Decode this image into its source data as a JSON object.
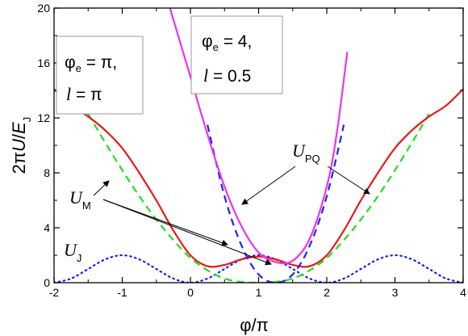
{
  "chart_data": {
    "type": "line",
    "xlabel_main": "φ/π",
    "ylabel_parts": {
      "prefix": "2π",
      "U": "U",
      "slash": "/",
      "E": "E",
      "sub": "J"
    },
    "xlim": [
      -2,
      4
    ],
    "ylim": [
      0,
      20
    ],
    "xticks": [
      -2,
      -1,
      0,
      1,
      2,
      3,
      4
    ],
    "yticks": [
      0,
      4,
      8,
      12,
      16,
      20
    ],
    "xtick_labels": [
      "-2",
      "-1",
      "0",
      "1",
      "2",
      "3",
      "4"
    ],
    "ytick_labels": [
      "0",
      "4",
      "8",
      "12",
      "16",
      "20"
    ],
    "series": [
      {
        "key": "uj",
        "color": "#1a1aff",
        "style": "dotted",
        "x": [
          -2,
          -1.75,
          -1.5,
          -1.25,
          -1,
          -0.75,
          -0.5,
          -0.25,
          0,
          0.25,
          0.5,
          0.75,
          1,
          1.25,
          1.5,
          1.75,
          2,
          2.25,
          2.5,
          2.75,
          3,
          3.25,
          3.5,
          3.75,
          4
        ],
        "y": [
          0,
          0.3,
          1.0,
          1.7,
          2.0,
          1.7,
          1.0,
          0.3,
          0,
          0.3,
          1.0,
          1.7,
          2.0,
          1.7,
          1.0,
          0.3,
          0,
          0.3,
          1.0,
          1.7,
          2.0,
          1.7,
          1.0,
          0.3,
          0
        ]
      },
      {
        "key": "green",
        "color": "#22dd22",
        "style": "dashed",
        "x": [
          -1.5,
          -1.25,
          -1,
          -0.75,
          -0.5,
          -0.25,
          0,
          0.25,
          0.5,
          0.75,
          1,
          1.25,
          1.5,
          1.75,
          2,
          2.25,
          2.5,
          2.75,
          3,
          3.25,
          3.5
        ],
        "y": [
          12.3,
          10.2,
          8.2,
          6.3,
          4.6,
          3.1,
          1.8,
          0.9,
          0.3,
          0.05,
          0,
          0.05,
          0.3,
          0.9,
          1.8,
          3.1,
          4.6,
          6.3,
          8.2,
          10.2,
          12.3
        ]
      },
      {
        "key": "um",
        "color": "#e8191a",
        "style": "solid",
        "x": [
          -2,
          -1.75,
          -1.5,
          -1.25,
          -1,
          -0.75,
          -0.5,
          -0.25,
          0,
          0.25,
          0.5,
          0.75,
          1,
          1.25,
          1.5,
          1.75,
          2,
          2.25,
          2.5,
          2.75,
          3,
          3.25,
          3.5,
          3.75,
          4
        ],
        "y": [
          14.1,
          12.9,
          12.1,
          11.1,
          9.8,
          8.0,
          6.0,
          3.8,
          2.0,
          1.2,
          1.3,
          1.7,
          1.9,
          1.7,
          1.3,
          1.2,
          2.0,
          3.8,
          6.0,
          8.0,
          9.8,
          11.1,
          12.1,
          12.9,
          14.1
        ]
      },
      {
        "key": "upq_blue",
        "color": "#2222ee",
        "style": "dashed",
        "x": [
          0.25,
          0.5,
          0.75,
          1.0,
          1.25,
          1.5,
          1.75,
          2.0,
          2.25
        ],
        "y": [
          11.5,
          6.3,
          2.7,
          0.6,
          0,
          0.6,
          2.7,
          6.3,
          11.5
        ]
      },
      {
        "key": "upq_magenta",
        "color": "#ee33ee",
        "style": "solid",
        "x": [
          -0.3,
          -0.15,
          0,
          0.25,
          0.5,
          0.75,
          1.0,
          1.25,
          1.5,
          1.75,
          2.0,
          2.15,
          2.3
        ],
        "y": [
          20,
          17.5,
          15.0,
          10.8,
          7.0,
          4.1,
          2.2,
          1.5,
          1.6,
          3.2,
          7.0,
          11.0,
          16.8
        ]
      }
    ],
    "legend": "none",
    "grid": false
  },
  "annotations": {
    "box1": {
      "phi": "φ",
      "e_sub": "e",
      "eq1": " = π,",
      "l": "l",
      "eq2": " = π"
    },
    "box2": {
      "phi": "φ",
      "e_sub": "e",
      "eq1": " = 4,",
      "l": "l",
      "eq2": " = 0.5"
    },
    "labels": {
      "upq_main": "U",
      "upq_sub": "PQ",
      "um_main": "U",
      "um_sub": "M",
      "uj_main": "U",
      "uj_sub": "J"
    }
  }
}
